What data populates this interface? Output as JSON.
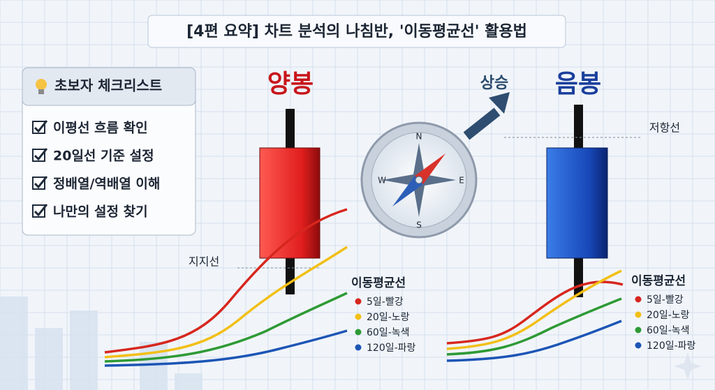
{
  "title": "[4편 요약] 차트 분석의 나침반, '이동평균선' 활용법",
  "checklist": {
    "title": "초보자 체크리스트",
    "items": [
      "이평선 흐름 확인",
      "20일선 기준 설정",
      "정배열/역배열 이해",
      "나만의 설정 찾기"
    ]
  },
  "left_panel": {
    "label": "양봉",
    "support_label": "지지선",
    "legend": {
      "title": "이동평균선",
      "items": [
        "5일-빨강",
        "20일-노랑",
        "60일-녹색",
        "120일-파랑"
      ]
    }
  },
  "compass": {
    "up_label": "상승",
    "directions": [
      "N",
      "E",
      "S",
      "W"
    ]
  },
  "right_panel": {
    "label": "음봉",
    "resistance_label": "저항선",
    "legend": {
      "title": "이동평균선",
      "items": [
        "5일-빨강",
        "20일-노랑",
        "60일-녹색",
        "120일-파랑"
      ]
    }
  }
}
